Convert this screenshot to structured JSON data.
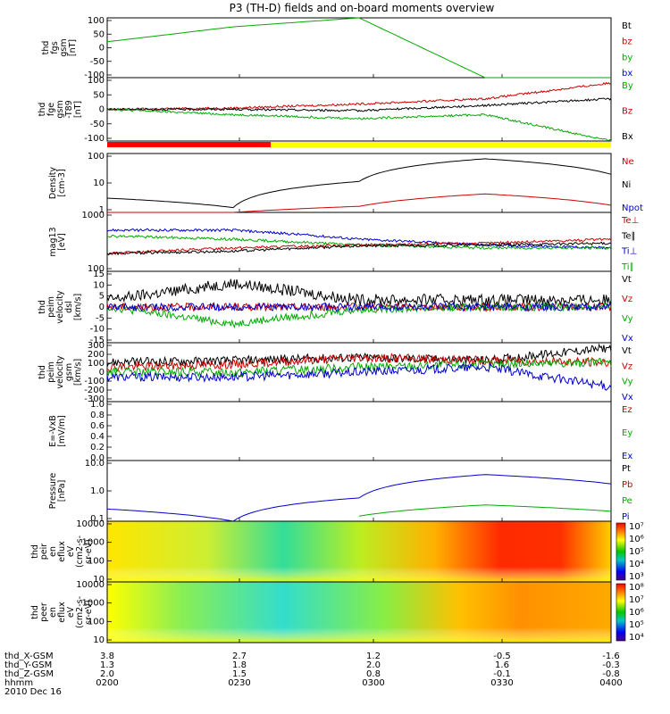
{
  "title": "P3 (TH-D) fields and on-board moments overview",
  "panels": [
    {
      "id": "fgs",
      "ylabel": [
        "thd",
        "fgs",
        "gsm",
        "[nT]"
      ],
      "ticks": [
        "100",
        "50",
        "0",
        "-50",
        "-100"
      ],
      "legend": [
        {
          "t": "Bt",
          "c": "#000000"
        },
        {
          "t": "bz",
          "c": "#cc0000"
        },
        {
          "t": "by",
          "c": "#00aa00"
        },
        {
          "t": "bx",
          "c": "#0000cc"
        }
      ]
    },
    {
      "id": "fge",
      "ylabel": [
        "thd",
        "fge",
        "gsm",
        "-T89",
        "[nT]"
      ],
      "ticks": [
        "100",
        "50",
        "0",
        "-50",
        "-100"
      ],
      "legend": [
        {
          "t": "By",
          "c": "#00aa00"
        },
        {
          "t": "Bz",
          "c": "#cc0000"
        },
        {
          "t": "Bx",
          "c": "#000000"
        }
      ]
    },
    {
      "id": "dens",
      "ylabel": [
        "Density",
        "[cm-3]"
      ],
      "ticks": [
        "100",
        "10",
        "1"
      ],
      "legend": [
        {
          "t": "Ne",
          "c": "#cc0000"
        },
        {
          "t": "Ni",
          "c": "#000000"
        },
        {
          "t": "Npot",
          "c": "#0000cc"
        }
      ]
    },
    {
      "id": "temp",
      "ylabel": [
        "mag13",
        "[eV]"
      ],
      "ticks": [
        "1000",
        "100"
      ],
      "legend": [
        {
          "t": "Te⊥",
          "c": "#cc0000"
        },
        {
          "t": "Te∥",
          "c": "#000000"
        },
        {
          "t": "Ti⊥",
          "c": "#0000cc"
        },
        {
          "t": "Ti∥",
          "c": "#00aa00"
        }
      ]
    },
    {
      "id": "vel",
      "ylabel": [
        "thd",
        "peim",
        "velocity",
        "dsl",
        "[km/s]"
      ],
      "ticks": [
        "15",
        "10",
        "5",
        "0",
        "-5",
        "-10",
        "-15"
      ],
      "legend": [
        {
          "t": "Vt",
          "c": "#000000"
        },
        {
          "t": "Vz",
          "c": "#cc0000"
        },
        {
          "t": "Vy",
          "c": "#00aa00"
        },
        {
          "t": "Vx",
          "c": "#0000cc"
        }
      ]
    },
    {
      "id": "vgsm",
      "ylabel": [
        "thd",
        "peim",
        "velocity",
        "gsm",
        "[km/s]"
      ],
      "ticks": [
        "300",
        "200",
        "100",
        "0",
        "-100",
        "-200",
        "-300"
      ],
      "legend": [
        {
          "t": "Vt",
          "c": "#000000"
        },
        {
          "t": "Vz",
          "c": "#cc0000"
        },
        {
          "t": "Vy",
          "c": "#00aa00"
        },
        {
          "t": "Vx",
          "c": "#0000cc"
        }
      ]
    },
    {
      "id": "efield",
      "ylabel": [
        "E=-VxB",
        "[mV/m]"
      ],
      "ticks": [
        "1.0",
        "0.8",
        "0.6",
        "0.4",
        "0.2",
        "0.0"
      ],
      "legend": [
        {
          "t": "Ez",
          "c": "#cc0000"
        },
        {
          "t": "Ey",
          "c": "#00aa00"
        },
        {
          "t": "Ex",
          "c": "#0000cc"
        }
      ]
    },
    {
      "id": "press",
      "ylabel": [
        "Pressure",
        "[nPa]"
      ],
      "ticks": [
        "10.0",
        "1.0",
        "0.1"
      ],
      "legend": [
        {
          "t": "Pt",
          "c": "#000000"
        },
        {
          "t": "Pb",
          "c": "#cc0000"
        },
        {
          "t": "Pe",
          "c": "#00aa00"
        },
        {
          "t": "Pi",
          "c": "#0000cc"
        }
      ]
    },
    {
      "id": "ieflux",
      "ylabel": [
        "thd",
        "peir",
        "en",
        "eflux",
        "eV",
        "(cm2-s-",
        "sr-eV)"
      ],
      "ticks": [
        "10000",
        "1000",
        "100",
        "10"
      ],
      "colorbar": [
        "10⁷",
        "10⁶",
        "10⁵",
        "10⁴",
        "10³"
      ]
    },
    {
      "id": "eeflux",
      "ylabel": [
        "thd",
        "peer",
        "en",
        "eflux",
        "eV",
        "(cm2-s-",
        "sr-eV)"
      ],
      "ticks": [
        "10000",
        "1000",
        "100",
        "10"
      ],
      "colorbar": [
        "10⁸",
        "10⁷",
        "10⁶",
        "10⁵",
        "10⁴"
      ]
    }
  ],
  "xaxis": {
    "rows": [
      {
        "label": "thd_X-GSM",
        "values": [
          "3.8",
          "2.7",
          "1.2",
          "-0.5",
          "-1.6"
        ]
      },
      {
        "label": "thd_Y-GSM",
        "values": [
          "1.3",
          "1.8",
          "2.0",
          "1.6",
          "-0.3"
        ]
      },
      {
        "label": "thd_Z-GSM",
        "values": [
          "2.0",
          "1.5",
          "0.8",
          "-0.1",
          "-0.8"
        ]
      },
      {
        "label": "hhmm",
        "values": [
          "0200",
          "0230",
          "0300",
          "0330",
          "0400"
        ]
      }
    ],
    "date": "2010 Dec 16"
  },
  "chart_data": [
    {
      "type": "line",
      "panel": "fgs",
      "x": [
        "0200",
        "0230",
        "0300",
        "0330",
        "0400"
      ],
      "xlabel": "hhmm",
      "ylim": [
        -100,
        100
      ],
      "series": [
        {
          "name": "by",
          "values": [
            20,
            70,
            100,
            -100,
            -100
          ]
        },
        {
          "name": "bx",
          "values": [
            null,
            null,
            null,
            null,
            -100
          ]
        }
      ]
    },
    {
      "type": "line",
      "panel": "fge",
      "x": [
        "0200",
        "0230",
        "0300",
        "0330",
        "0400"
      ],
      "ylim": [
        -120,
        120
      ],
      "series": [
        {
          "name": "Bz",
          "values": [
            0,
            5,
            20,
            40,
            100
          ]
        },
        {
          "name": "Bx",
          "values": [
            0,
            0,
            -5,
            15,
            40
          ]
        },
        {
          "name": "By",
          "values": [
            0,
            -20,
            -35,
            -20,
            -120
          ]
        }
      ]
    },
    {
      "type": "line",
      "panel": "dens",
      "x": [
        "0200",
        "0230",
        "0300",
        "0330",
        "0400"
      ],
      "ylim": [
        0.5,
        150
      ],
      "series": [
        {
          "name": "Ni",
          "values": [
            2,
            0.8,
            10,
            90,
            20
          ]
        },
        {
          "name": "Ne",
          "values": [
            0.5,
            0.5,
            0.9,
            3,
            1
          ]
        }
      ]
    },
    {
      "type": "line",
      "panel": "temp",
      "x": [
        "0200",
        "0230",
        "0300",
        "0330",
        "0400"
      ],
      "ylim": [
        100,
        1000
      ],
      "series": [
        {
          "name": "Ti⊥",
          "values": [
            500,
            500,
            350,
            280,
            250
          ]
        },
        {
          "name": "Ti∥",
          "values": [
            400,
            350,
            280,
            250,
            250
          ]
        },
        {
          "name": "Te⊥",
          "values": [
            200,
            250,
            280,
            300,
            350
          ]
        },
        {
          "name": "Te∥",
          "values": [
            200,
            220,
            270,
            280,
            300
          ]
        }
      ]
    },
    {
      "type": "line",
      "panel": "vel",
      "x": [
        "0200",
        "0230",
        "0300",
        "0330",
        "0400"
      ],
      "ylim": [
        -15,
        15
      ],
      "series": [
        {
          "name": "Vt",
          "values": [
            3,
            10,
            3,
            3,
            3
          ]
        },
        {
          "name": "Vz",
          "values": [
            0,
            0,
            0,
            0,
            0
          ]
        },
        {
          "name": "Vy",
          "values": [
            0,
            -7,
            -1,
            0,
            0
          ]
        },
        {
          "name": "Vx",
          "values": [
            0,
            0,
            0,
            0,
            0
          ]
        }
      ]
    },
    {
      "type": "line",
      "panel": "vgsm",
      "x": [
        "0200",
        "0230",
        "0300",
        "0330",
        "0400"
      ],
      "ylim": [
        -300,
        300
      ],
      "series": [
        {
          "name": "Vt",
          "values": [
            100,
            120,
            150,
            120,
            250
          ]
        },
        {
          "name": "Vz",
          "values": [
            50,
            80,
            150,
            120,
            100
          ]
        },
        {
          "name": "Vy",
          "values": [
            0,
            0,
            50,
            80,
            100
          ]
        },
        {
          "name": "Vx",
          "values": [
            -50,
            -50,
            0,
            50,
            -150
          ]
        }
      ]
    },
    {
      "type": "line",
      "panel": "efield",
      "x": [
        "0200",
        "0230",
        "0300",
        "0330",
        "0400"
      ],
      "ylim": [
        0,
        1
      ],
      "series": []
    },
    {
      "type": "line",
      "panel": "press",
      "x": [
        "0200",
        "0230",
        "0300",
        "0330",
        "0400"
      ],
      "ylim": [
        0.03,
        12
      ],
      "series": [
        {
          "name": "Pi",
          "values": [
            0.1,
            0.03,
            0.3,
            3,
            1.2
          ]
        },
        {
          "name": "Pe",
          "values": [
            null,
            null,
            0.05,
            0.15,
            0.08
          ]
        }
      ]
    },
    {
      "type": "heatmap",
      "panel": "ieflux",
      "x": [
        "0200",
        "0230",
        "0300",
        "0330",
        "0400"
      ],
      "ylim": [
        10,
        10000
      ],
      "zrange": [
        "10³",
        "10⁷"
      ]
    },
    {
      "type": "heatmap",
      "panel": "eeflux",
      "x": [
        "0200",
        "0230",
        "0300",
        "0330",
        "0400"
      ],
      "ylim": [
        10,
        10000
      ],
      "zrange": [
        "10⁴",
        "10⁸"
      ]
    }
  ]
}
